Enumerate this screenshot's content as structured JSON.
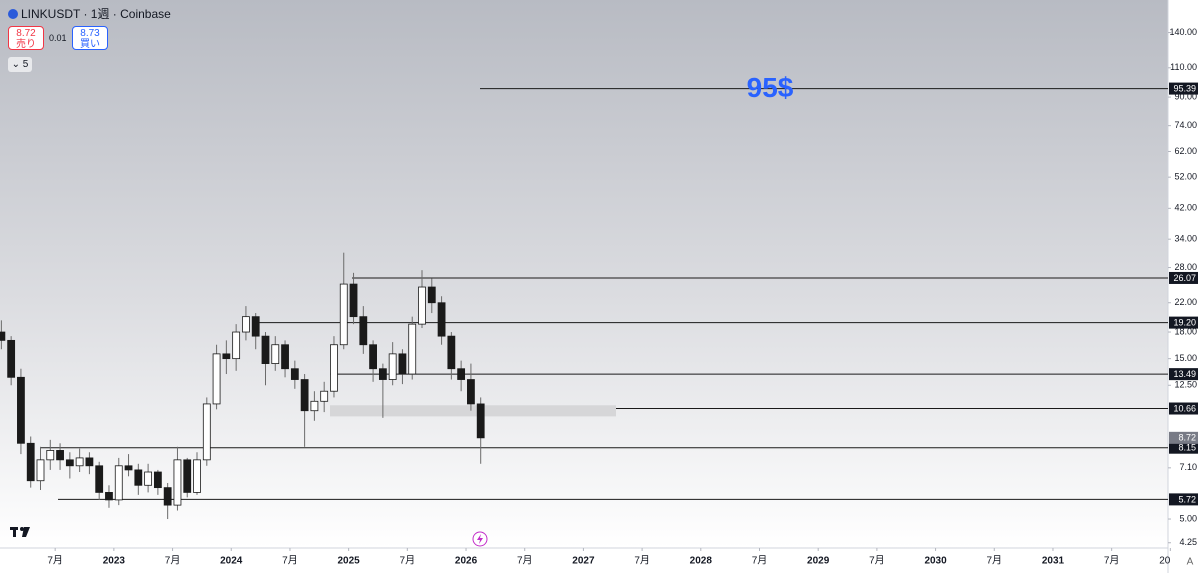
{
  "ui": {
    "symbol": "LINKUSDT · 1週 · Coinbase",
    "sell_price": "8.72",
    "sell_label": "売り",
    "spread": "0.01",
    "buy_price": "8.73",
    "buy_label": "買い",
    "indicators": "5"
  },
  "chart_data": {
    "type": "candlestick",
    "log_scale": true,
    "up_color": "#ffffff",
    "down_color": "#1a1a1a",
    "wick_color": "#6b6b6b",
    "level_color": "#1a1a1a",
    "annotation_color": "#2962ff",
    "annotations": [
      "95$"
    ],
    "xlim": [
      2022.03,
      2031.98
    ],
    "ylim": [
      4.1,
      175
    ],
    "x": [
      2022.0417,
      2022.125,
      2022.2083,
      2022.2917,
      2022.375,
      2022.4583,
      2022.5417,
      2022.625,
      2022.7083,
      2022.7917,
      2022.875,
      2022.9583,
      2023.0417,
      2023.125,
      2023.2083,
      2023.2917,
      2023.375,
      2023.4583,
      2023.5417,
      2023.625,
      2023.7083,
      2023.7917,
      2023.875,
      2023.9583,
      2024.0417,
      2024.125,
      2024.2083,
      2024.2917,
      2024.375,
      2024.4583,
      2024.5417,
      2024.625,
      2024.7083,
      2024.7917,
      2024.875,
      2024.9583,
      2025.0417,
      2025.125,
      2025.2083,
      2025.2917,
      2025.375,
      2025.4583,
      2025.5417,
      2025.625,
      2025.7083,
      2025.7917,
      2025.875,
      2025.9583,
      2026.0417,
      2026.125
    ],
    "open": [
      18,
      17,
      13.2,
      8.4,
      6.5,
      7.5,
      8,
      7.5,
      7.2,
      7.6,
      7.2,
      6.0,
      5.7,
      7.2,
      7.0,
      6.3,
      6.9,
      6.2,
      5.5,
      7.5,
      6.0,
      7.5,
      11,
      15.5,
      15,
      18,
      20,
      17.5,
      14.5,
      16.5,
      14,
      13,
      10.5,
      11.2,
      12,
      16.5,
      25,
      20,
      16.5,
      14,
      13,
      15.5,
      13.5,
      19,
      24.5,
      22,
      17.5,
      14,
      13,
      11
    ],
    "high": [
      19.5,
      17.5,
      14,
      8.8,
      8.2,
      8.6,
      8.4,
      7.9,
      8.1,
      7.9,
      7.4,
      6.3,
      7.6,
      7.8,
      7.3,
      7.3,
      7.0,
      6.4,
      8.2,
      7.6,
      7.9,
      11.5,
      16.5,
      17,
      19,
      21.5,
      20.5,
      18,
      17.5,
      17,
      14.8,
      13.5,
      12,
      12.8,
      17.5,
      31,
      27,
      21.5,
      17,
      14.5,
      16.8,
      16,
      20,
      27.5,
      26,
      23,
      18,
      14.8,
      14.5,
      11.5
    ],
    "low": [
      16,
      12.5,
      7.8,
      6.2,
      6.1,
      7.0,
      7.0,
      6.6,
      6.9,
      6.8,
      5.7,
      5.4,
      5.5,
      6.7,
      5.9,
      6.0,
      5.9,
      5.0,
      5.3,
      5.8,
      5.9,
      7.2,
      10.6,
      13.5,
      13.8,
      17,
      16,
      12.5,
      13.8,
      13.2,
      12.2,
      8.2,
      9.8,
      10.4,
      11.5,
      16,
      19,
      15.5,
      12.8,
      10,
      12.5,
      12.6,
      13,
      18.5,
      20.5,
      16.5,
      13,
      12,
      10.5,
      7.3
    ],
    "close": [
      17,
      13.2,
      8.4,
      6.5,
      7.5,
      8,
      7.5,
      7.2,
      7.6,
      7.2,
      6.0,
      5.7,
      7.2,
      7.0,
      6.3,
      6.9,
      6.2,
      5.5,
      7.5,
      6.0,
      7.5,
      11,
      15.5,
      15,
      18,
      20,
      17.5,
      14.5,
      16.5,
      14,
      13,
      10.5,
      11.2,
      12,
      16.5,
      25,
      20,
      16.5,
      14,
      13,
      15.5,
      13.5,
      19,
      24.5,
      22,
      17.5,
      14,
      13,
      11,
      8.72
    ],
    "levels": [
      {
        "value": 95.39,
        "label": "95.39"
      },
      {
        "value": 26.07,
        "label": "26.07"
      },
      {
        "value": 19.2,
        "label": "19.20"
      },
      {
        "value": 13.49,
        "label": "13.49"
      },
      {
        "value": 10.66,
        "label": "10.66"
      },
      {
        "value": 8.15,
        "label": "8.15"
      },
      {
        "value": 5.72,
        "label": "5.72"
      }
    ],
    "zone": [
      10.1,
      10.9
    ],
    "yticks": [
      {
        "value": 140,
        "label": "140.00"
      },
      {
        "value": 110,
        "label": "110.00"
      },
      {
        "value": 90,
        "label": "90.00"
      },
      {
        "value": 74,
        "label": "74.00"
      },
      {
        "value": 62,
        "label": "62.00"
      },
      {
        "value": 52,
        "label": "52.00"
      },
      {
        "value": 42,
        "label": "42.00"
      },
      {
        "value": 34,
        "label": "34.00"
      },
      {
        "value": 28,
        "label": "28.00"
      },
      {
        "value": 22,
        "label": "22.00"
      },
      {
        "value": 18,
        "label": "18.00"
      },
      {
        "value": 15,
        "label": "15.00"
      },
      {
        "value": 12.5,
        "label": "12.50"
      },
      {
        "value": 7.1,
        "label": "7.10"
      },
      {
        "value": 5,
        "label": "5.00"
      },
      {
        "value": 4.25,
        "label": "4.25"
      }
    ],
    "xticks": [
      {
        "value": 2022.5,
        "label": "7月"
      },
      2023,
      {
        "value": 2023.5,
        "label": "7月"
      },
      2024,
      {
        "value": 2024.5,
        "label": "7月"
      },
      2025,
      {
        "value": 2025.5,
        "label": "7月"
      },
      2026,
      {
        "value": 2026.5,
        "label": "7月"
      },
      2027,
      {
        "value": 2027.5,
        "label": "7月"
      },
      2028,
      {
        "value": 2028.5,
        "label": "7月"
      },
      2029,
      {
        "value": 2029.5,
        "label": "7月"
      },
      2030,
      {
        "value": 2030.5,
        "label": "7月"
      },
      2031,
      {
        "value": 2031.5,
        "label": "7月"
      },
      {
        "value": 2032,
        "label": "20"
      }
    ]
  }
}
